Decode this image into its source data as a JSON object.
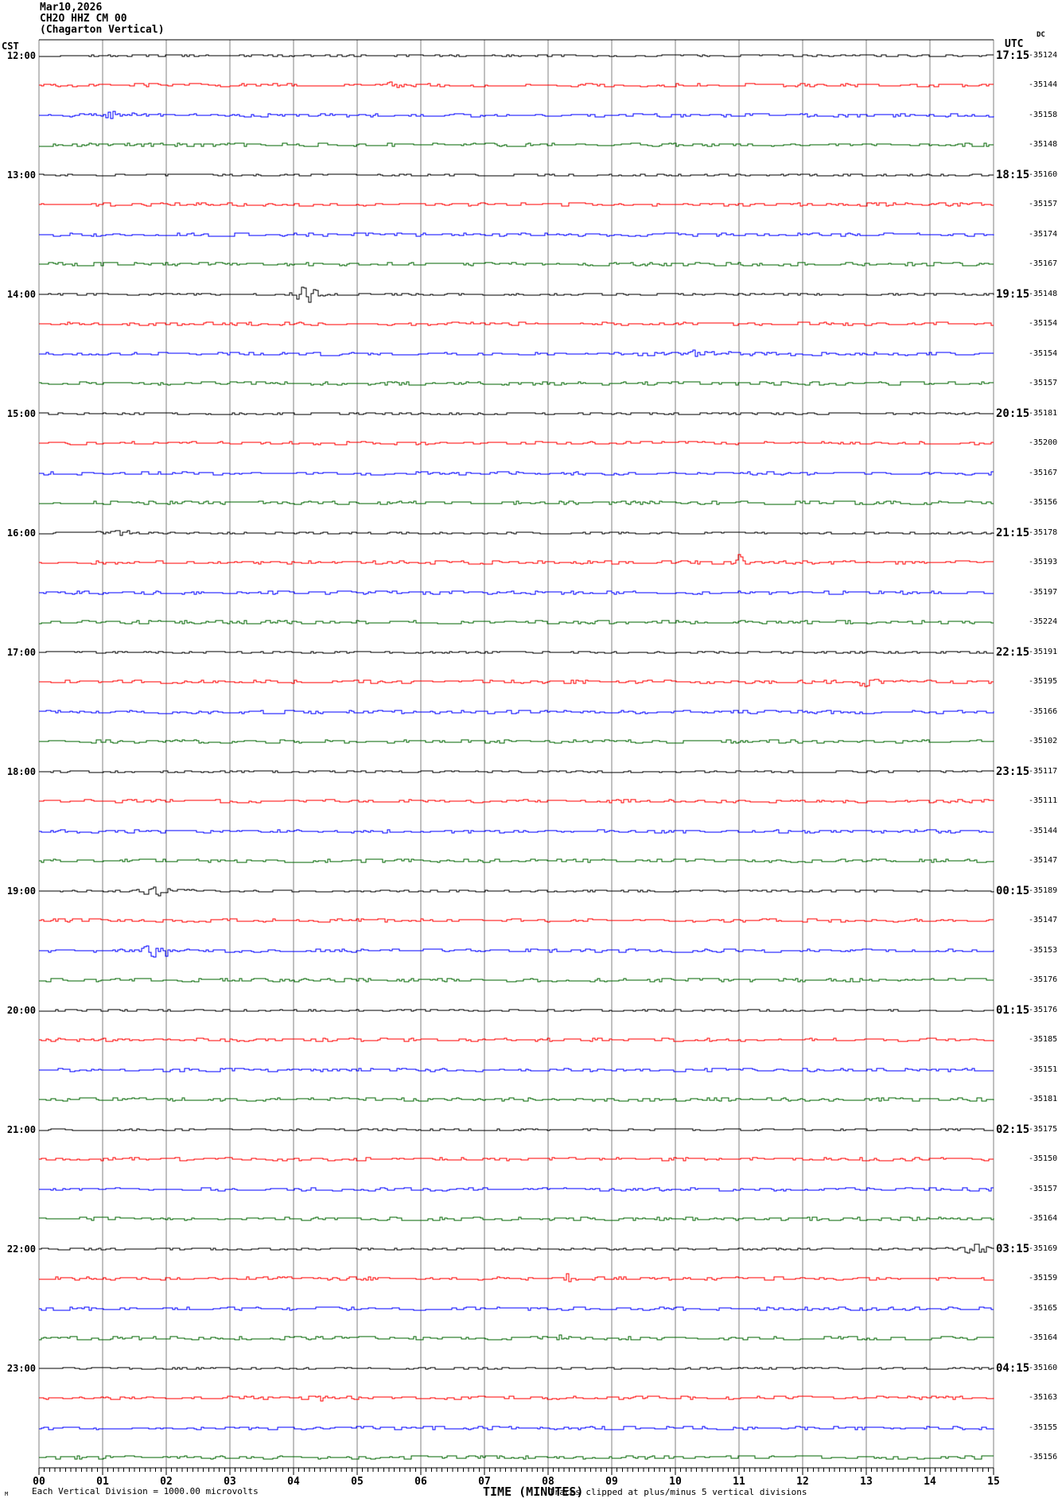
{
  "header": {
    "date": "Mar10,2026",
    "station": "CH2O HHZ CM 00",
    "location": "(Chagarton Vertical)"
  },
  "axes": {
    "left_label": "CST",
    "right_label": "UTC",
    "dc_label": "DC",
    "x_label": "TIME (MINUTES)"
  },
  "footer": {
    "scale_note": "Each Vertical Division = 1000.00 microvolts",
    "clip_note": "Traces clipped at plus/minus 5 vertical divisions",
    "corner_mark": "M"
  },
  "colors": {
    "black": "#000000",
    "red": "#ff0000",
    "blue": "#0000ff",
    "green": "#006600",
    "grid": "#808080",
    "axis": "#000000"
  },
  "chart_data": {
    "type": "line",
    "subtype": "helicorder-seismogram",
    "title": "Mar10,2026 CH2O HHZ CM 00 (Chagarton Vertical)",
    "xlabel": "TIME (MINUTES)",
    "x_range": [
      0,
      15
    ],
    "x_ticks": [
      "00",
      "01",
      "02",
      "03",
      "04",
      "05",
      "06",
      "07",
      "08",
      "09",
      "10",
      "11",
      "12",
      "13",
      "14",
      "15"
    ],
    "minutes_per_line": 15,
    "lines_per_hour": 4,
    "vertical_division_microvolts": 1000.0,
    "clip_divisions": 5,
    "grid": "vertical-only",
    "legend_position": "none",
    "rows": [
      {
        "cst": "12:00",
        "utc": "17:15",
        "color": "black",
        "dc": -35124
      },
      {
        "color": "red",
        "dc": -35144
      },
      {
        "color": "blue",
        "dc": -35158
      },
      {
        "color": "green",
        "dc": -35148
      },
      {
        "cst": "13:00",
        "utc": "18:15",
        "color": "black",
        "dc": -35160
      },
      {
        "color": "red",
        "dc": -35157
      },
      {
        "color": "blue",
        "dc": -35174
      },
      {
        "color": "green",
        "dc": -35167
      },
      {
        "cst": "14:00",
        "utc": "19:15",
        "color": "black",
        "dc": -35148
      },
      {
        "color": "red",
        "dc": -35154
      },
      {
        "color": "blue",
        "dc": -35154
      },
      {
        "color": "green",
        "dc": -35157
      },
      {
        "cst": "15:00",
        "utc": "20:15",
        "color": "black",
        "dc": -35181
      },
      {
        "color": "red",
        "dc": -35200
      },
      {
        "color": "blue",
        "dc": -35167
      },
      {
        "color": "green",
        "dc": -35156
      },
      {
        "cst": "16:00",
        "utc": "21:15",
        "color": "black",
        "dc": -35178
      },
      {
        "color": "red",
        "dc": -35193
      },
      {
        "color": "blue",
        "dc": -35197
      },
      {
        "color": "green",
        "dc": -35224
      },
      {
        "cst": "17:00",
        "utc": "22:15",
        "color": "black",
        "dc": -35191
      },
      {
        "color": "red",
        "dc": -35195
      },
      {
        "color": "blue",
        "dc": -35166
      },
      {
        "color": "green",
        "dc": -35102
      },
      {
        "cst": "18:00",
        "utc": "23:15",
        "color": "black",
        "dc": -35117
      },
      {
        "color": "red",
        "dc": -35111
      },
      {
        "color": "blue",
        "dc": -35144
      },
      {
        "color": "green",
        "dc": -35147
      },
      {
        "cst": "19:00",
        "utc": "00:15",
        "color": "black",
        "dc": -35189
      },
      {
        "color": "red",
        "dc": -35147
      },
      {
        "color": "blue",
        "dc": -35153
      },
      {
        "color": "green",
        "dc": -35176
      },
      {
        "cst": "20:00",
        "utc": "01:15",
        "color": "black",
        "dc": -35176
      },
      {
        "color": "red",
        "dc": -35185
      },
      {
        "color": "blue",
        "dc": -35151
      },
      {
        "color": "green",
        "dc": -35181
      },
      {
        "cst": "21:00",
        "utc": "02:15",
        "color": "black",
        "dc": -35175
      },
      {
        "color": "red",
        "dc": -35150
      },
      {
        "color": "blue",
        "dc": -35157
      },
      {
        "color": "green",
        "dc": -35164
      },
      {
        "cst": "22:00",
        "utc": "03:15",
        "color": "black",
        "dc": -35169
      },
      {
        "color": "red",
        "dc": -35159
      },
      {
        "color": "blue",
        "dc": -35165
      },
      {
        "color": "green",
        "dc": -35164
      },
      {
        "cst": "23:00",
        "utc": "04:15",
        "color": "black",
        "dc": -35160
      },
      {
        "color": "red",
        "dc": -35163
      },
      {
        "color": "blue",
        "dc": -35155
      },
      {
        "color": "green",
        "dc": -35156
      }
    ],
    "events": [
      {
        "row": 1,
        "minute": 5.6,
        "amp": 3,
        "dur": 0.25
      },
      {
        "row": 2,
        "minute": 1.06,
        "amp": 3,
        "dur": 0.4
      },
      {
        "row": 8,
        "minute": 4.2,
        "amp": 8,
        "dur": 0.35
      },
      {
        "row": 10,
        "minute": 10.35,
        "amp": 3.5,
        "dur": 0.5
      },
      {
        "row": 16,
        "minute": 1.3,
        "amp": 3,
        "dur": 0.3
      },
      {
        "row": 17,
        "minute": 11.0,
        "amp": 6,
        "dur": 0.12
      },
      {
        "row": 21,
        "minute": 13.0,
        "amp": 4,
        "dur": 0.3
      },
      {
        "row": 28,
        "minute": 1.8,
        "amp": 4,
        "dur": 0.5
      },
      {
        "row": 30,
        "minute": 1.82,
        "amp": 6,
        "dur": 0.45
      },
      {
        "row": 40,
        "minute": 14.7,
        "amp": 5,
        "dur": 0.45
      },
      {
        "row": 41,
        "minute": 8.3,
        "amp": 3,
        "dur": 0.2
      },
      {
        "row": 43,
        "minute": 8.2,
        "amp": 2,
        "dur": 0.2
      },
      {
        "row": 45,
        "minute": 4.35,
        "amp": 3,
        "dur": 0.2
      }
    ]
  }
}
